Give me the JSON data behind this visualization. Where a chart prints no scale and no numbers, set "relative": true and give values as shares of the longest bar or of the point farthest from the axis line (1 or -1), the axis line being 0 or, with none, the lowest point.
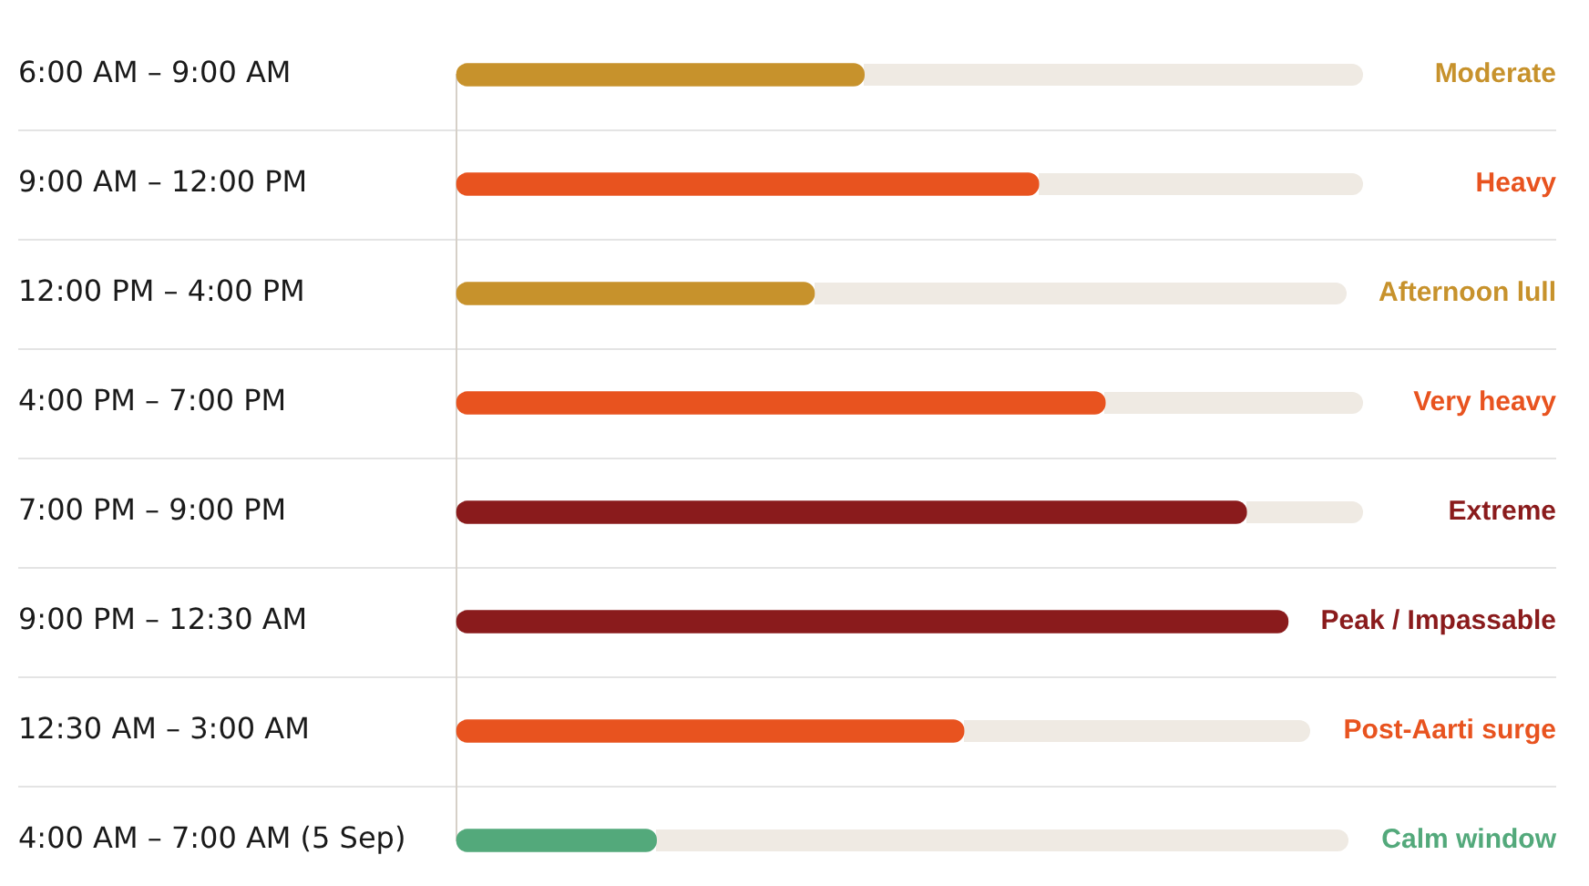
{
  "chart_data": {
    "type": "bar",
    "orientation": "horizontal",
    "relative": true,
    "categories": [
      "6:00 AM – 9:00 AM",
      "9:00 AM – 12:00 PM",
      "12:00 PM – 4:00 PM",
      "4:00 PM – 7:00 PM",
      "7:00 PM – 9:00 PM",
      "9:00 PM – 12:30 AM",
      "12:30 AM – 3:00 AM",
      "4:00 AM – 7:00 AM (5 Sep)"
    ],
    "values": [
      0.49,
      0.7,
      0.43,
      0.78,
      0.95,
      1,
      0.61,
      0.24
    ],
    "colors": [
      "#c7922c",
      "#e8531f",
      "#c7922c",
      "#e8531f",
      "#8a1b1c",
      "#8a1b1c",
      "#e8531f",
      "#53a97b"
    ],
    "annotations": [
      "Moderate",
      "Heavy",
      "Afternoon lull",
      "Very heavy",
      "Extreme",
      "Peak / Impassable",
      "Post-Aarti surge",
      "Calm window"
    ]
  }
}
